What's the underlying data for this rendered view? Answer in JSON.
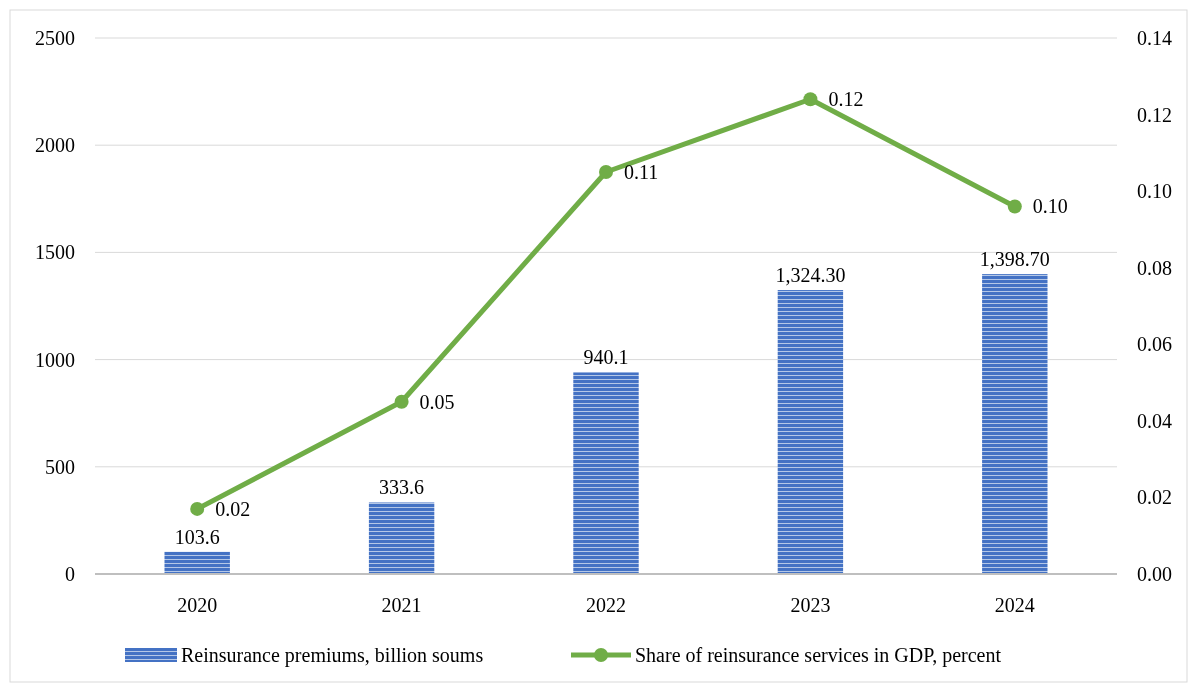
{
  "chart_data": {
    "type": "bar",
    "categories": [
      "2020",
      "2021",
      "2022",
      "2023",
      "2024"
    ],
    "series": [
      {
        "name": "Reinsurance premiums, billion soums",
        "color": "#4472c4",
        "values": [
          103.6,
          333.6,
          940.1,
          1324.3,
          1398.7
        ],
        "value_labels": [
          "103.6",
          "333.6",
          "940.1",
          "1,324.30",
          "1,398.70"
        ]
      },
      {
        "name": "Share of reinsurance services in GDP, percent",
        "type": "line",
        "axis": "y2",
        "color": "#70ad47",
        "marker": "circle",
        "values": [
          0.017,
          0.045,
          0.105,
          0.124,
          0.096
        ],
        "value_labels": [
          "0.02",
          "0.05",
          "0.11",
          "0.12",
          "0.10"
        ]
      }
    ],
    "ylim": [
      0,
      2500
    ],
    "yticks": [
      0,
      500,
      1000,
      1500,
      2000,
      2500
    ],
    "y2lim": [
      0,
      0.14
    ],
    "y2ticks": [
      {
        "value": 0,
        "label": "0.00"
      },
      {
        "value": 0.02,
        "label": "0.02"
      },
      {
        "value": 0.04,
        "label": "0.04"
      },
      {
        "value": 0.06,
        "label": "0.06"
      },
      {
        "value": 0.08,
        "label": "0.08"
      },
      {
        "value": 0.1,
        "label": "0.10"
      },
      {
        "value": 0.12,
        "label": "0.12"
      },
      {
        "value": 0.14,
        "label": "0.14"
      }
    ],
    "grid": "y",
    "legend": "bottom"
  }
}
